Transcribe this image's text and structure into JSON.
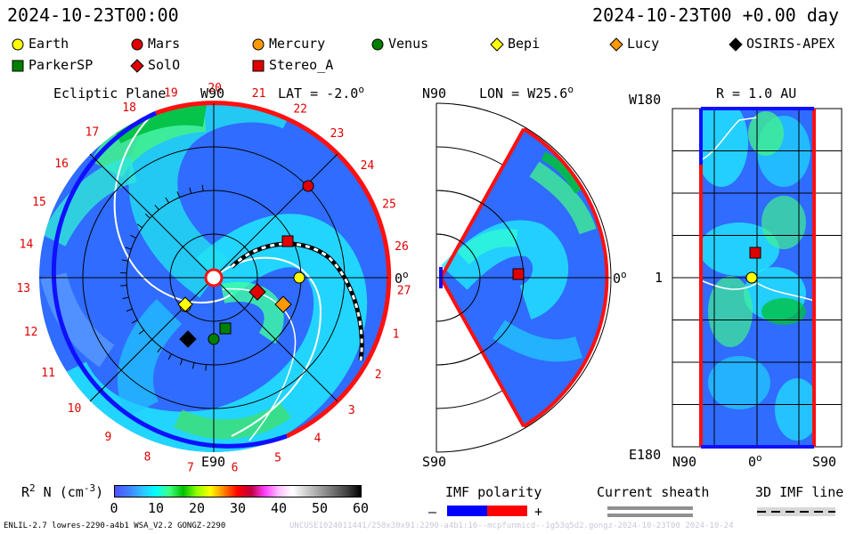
{
  "header": {
    "datetime_left": "2024-10-23T00:00",
    "datetime_right": "2024-10-23T00 +0.00 day"
  },
  "legend": [
    {
      "name": "Earth",
      "shape": "circle",
      "color": "#ffff00"
    },
    {
      "name": "Mars",
      "shape": "circle",
      "color": "#e00000"
    },
    {
      "name": "Mercury",
      "shape": "circle",
      "color": "#ff9900"
    },
    {
      "name": "Venus",
      "shape": "circle",
      "color": "#008000"
    },
    {
      "name": "Bepi",
      "shape": "diamond",
      "color": "#ffff00"
    },
    {
      "name": "Lucy",
      "shape": "diamond",
      "color": "#ff9900"
    },
    {
      "name": "OSIRIS-APEX",
      "shape": "diamond",
      "color": "#000000"
    },
    {
      "name": "ParkerSP",
      "shape": "square",
      "color": "#008000"
    },
    {
      "name": "SolO",
      "shape": "diamond",
      "color": "#e00000"
    },
    {
      "name": "Stereo_A",
      "shape": "square",
      "color": "#e00000"
    }
  ],
  "ecliptic": {
    "title": "Ecliptic Plane",
    "lat_label": "LAT = -2.0",
    "lat_degree": "o",
    "top_label": "W90",
    "bottom_label": "E90",
    "right_label": "0",
    "right_degree": "o",
    "hours": [
      "19",
      "20",
      "21",
      "22",
      "23",
      "24",
      "25",
      "26",
      "27",
      "1",
      "2",
      "3",
      "4",
      "5",
      "6",
      "7",
      "8",
      "9",
      "10",
      "11",
      "12",
      "13",
      "14",
      "15",
      "16",
      "17",
      "18"
    ]
  },
  "meridional": {
    "lon_label": "LON = W25.6",
    "lon_degree": "o",
    "top_label": "N90",
    "bottom_label": "S90",
    "right_label": "0",
    "right_degree": "o"
  },
  "sphere": {
    "r_label": "R = 1.0 AU",
    "top_left": "W180",
    "mid_left": "1",
    "bottom_left": "E180",
    "x_left": "N90",
    "x_mid": "0",
    "x_mid_degree": "o",
    "x_right": "S90"
  },
  "colorbar": {
    "label_r": "R",
    "label_sup": "2",
    "label_rest": " N (cm",
    "label_exp": "-3",
    "label_end": ")",
    "ticks": [
      "0",
      "10",
      "20",
      "30",
      "40",
      "50",
      "60"
    ],
    "colors": [
      "#5050ff",
      "#4080ff",
      "#30c0ff",
      "#00ffff",
      "#40ff80",
      "#00c000",
      "#90ff00",
      "#ffff00",
      "#ff8000",
      "#ff0000",
      "#c00040",
      "#ff40ff",
      "#ffc0ff",
      "#ffffff",
      "#d0d0d0",
      "#a0a0a0",
      "#707070",
      "#404040",
      "#000000"
    ]
  },
  "imf": {
    "title": "IMF polarity",
    "minus": "–",
    "plus": "+",
    "neg_color": "#0000ff",
    "pos_color": "#ff0000"
  },
  "sheath": {
    "title": "Current sheath"
  },
  "imfline": {
    "title": "3D IMF line"
  },
  "footer": {
    "left": "ENLIL-2.7 lowres-2290-a4b1 WSA_V2.2 GONGZ-2290",
    "right": "UNCUSE1024011441/258x30x91:2290-a4b1:16--mcpfunmicd--1g53q5d2.gongz-2024-10-23T00   2024-10-24"
  }
}
